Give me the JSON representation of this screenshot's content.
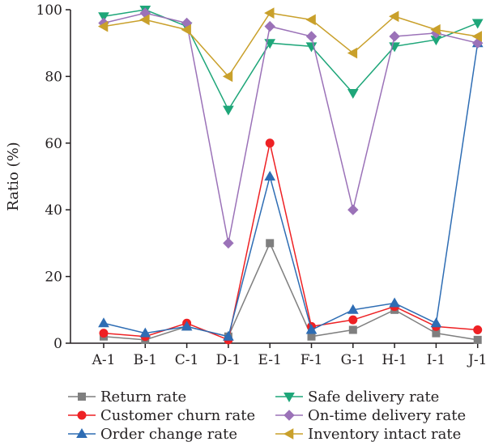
{
  "chart_data": {
    "type": "line",
    "ylabel": "Ratio (%)",
    "xlabel": "",
    "ylim": [
      0,
      100
    ],
    "yticks": [
      0,
      20,
      40,
      60,
      80,
      100
    ],
    "categories": [
      "A-1",
      "B-1",
      "C-1",
      "D-1",
      "E-1",
      "F-1",
      "G-1",
      "H-1",
      "I-1",
      "J-1"
    ],
    "legend_position": "bottom",
    "series": [
      {
        "name": "Return rate",
        "marker": "square",
        "color": "#7f7f7f",
        "values": [
          2,
          1,
          5,
          2,
          30,
          2,
          4,
          10,
          3,
          1
        ]
      },
      {
        "name": "Customer churn rate",
        "marker": "circle",
        "color": "#ee2124",
        "values": [
          3,
          2,
          6,
          1,
          60,
          5,
          7,
          11,
          5,
          4
        ]
      },
      {
        "name": "Order change rate",
        "marker": "triangle-up",
        "color": "#2e6db4",
        "values": [
          6,
          3,
          5,
          2,
          50,
          4,
          10,
          12,
          6,
          90
        ]
      },
      {
        "name": "Safe delivery rate",
        "marker": "triangle-down",
        "color": "#1ea679",
        "values": [
          98,
          100,
          95,
          70,
          90,
          89,
          75,
          89,
          91,
          96
        ]
      },
      {
        "name": "On-time delivery rate",
        "marker": "diamond",
        "color": "#9b72b8",
        "values": [
          96,
          99,
          96,
          30,
          95,
          92,
          40,
          92,
          93,
          90
        ]
      },
      {
        "name": "Inventory intact rate",
        "marker": "triangle-left",
        "color": "#c9a02b",
        "values": [
          95,
          97,
          94,
          80,
          99,
          97,
          87,
          98,
          94,
          92
        ]
      }
    ]
  }
}
